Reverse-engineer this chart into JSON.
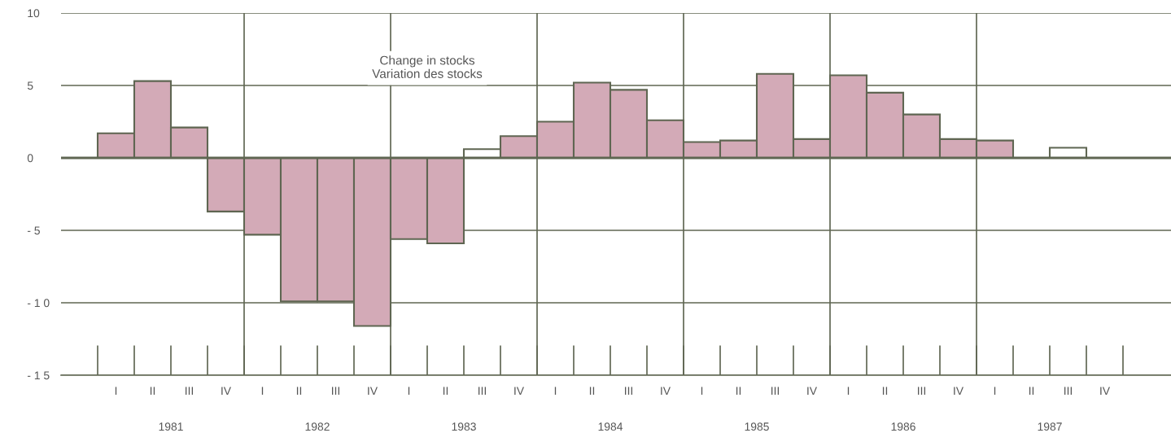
{
  "chart_data": {
    "type": "bar",
    "title": "Change in stocks\nVariation des stocks",
    "categories": [
      "I",
      "II",
      "III",
      "IV",
      "I",
      "II",
      "III",
      "IV",
      "I",
      "II",
      "III",
      "IV",
      "I",
      "II",
      "III",
      "IV",
      "I",
      "II",
      "III",
      "IV",
      "I",
      "II",
      "III",
      "IV",
      "I",
      "II",
      "III",
      "IV"
    ],
    "values": [
      1.7,
      5.3,
      2.1,
      -3.7,
      -5.3,
      -9.9,
      -9.9,
      -11.6,
      -5.6,
      -5.9,
      0.6,
      1.5,
      2.5,
      5.2,
      4.7,
      2.6,
      1.1,
      1.2,
      5.8,
      1.3,
      5.7,
      4.5,
      3.0,
      1.3,
      1.2,
      null,
      0.7,
      null
    ],
    "colors": [
      "#d3aab7",
      "#d3aab7",
      "#d3aab7",
      "#d3aab7",
      "#d3aab7",
      "#d3aab7",
      "#d3aab7",
      "#d3aab7",
      "#d3aab7",
      "#d3aab7",
      "#ffffff",
      "#d3aab7",
      "#d3aab7",
      "#d3aab7",
      "#d3aab7",
      "#d3aab7",
      "#d3aab7",
      "#d3aab7",
      "#d3aab7",
      "#d3aab7",
      "#d3aab7",
      "#d3aab7",
      "#d3aab7",
      "#d3aab7",
      "#d3aab7",
      "#d3aab7",
      "#ffffff",
      "#d3aab7"
    ],
    "ylim": [
      -15,
      10
    ],
    "yticks": [
      {
        "value": -15,
        "label": "- 1 5"
      },
      {
        "value": -10,
        "label": "- 1 0"
      },
      {
        "value": -5,
        "label": "- 5"
      },
      0,
      5,
      10
    ],
    "annotations": [
      "1981",
      "1982",
      "1983",
      "1984",
      "1985",
      "1986",
      "1987"
    ],
    "grid": "y"
  }
}
